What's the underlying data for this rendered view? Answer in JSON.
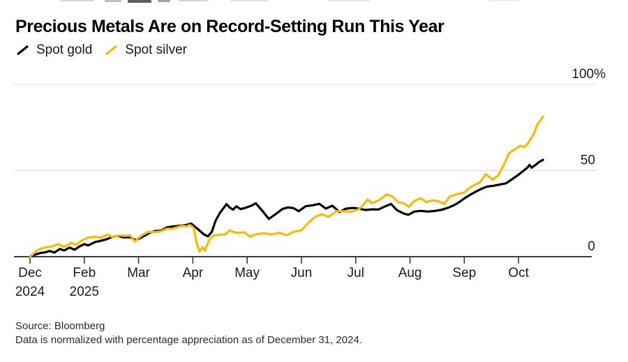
{
  "footer": {
    "source": "Source: Bloomberg",
    "note": "Data is normalized with percentage appreciation as of December 31, 2024."
  },
  "chart_data": {
    "type": "line",
    "title": "Precious Metals Are on Record-Setting Run This Year",
    "xlabel": "",
    "ylabel": "",
    "y_unit": "% appreciation since Dec 31, 2024",
    "x_unit": "month tick index: 0 = Dec 2024 (Dec 31 start), 1 = Feb 2025, 9 = Oct 2025; data ends mid-October 2025",
    "ylim": [
      0,
      100
    ],
    "grid": "horizontal",
    "legend_position": "top-left",
    "yticks": [
      {
        "v": 0,
        "label": "0"
      },
      {
        "v": 50,
        "label": "50"
      },
      {
        "v": 100,
        "label": "100%"
      }
    ],
    "xticks": [
      {
        "u": 0,
        "label": "Dec",
        "sub": "2024"
      },
      {
        "u": 1,
        "label": "Feb",
        "sub": "2025"
      },
      {
        "u": 2,
        "label": "Mar"
      },
      {
        "u": 3,
        "label": "Apr"
      },
      {
        "u": 4,
        "label": "May"
      },
      {
        "u": 5,
        "label": "Jun"
      },
      {
        "u": 6,
        "label": "Jul"
      },
      {
        "u": 7,
        "label": "Aug"
      },
      {
        "u": 8,
        "label": "Sep"
      },
      {
        "u": 9,
        "label": "Oct"
      }
    ],
    "series": [
      {
        "name": "Spot gold",
        "color": "#000000",
        "points": [
          [
            0,
            0
          ],
          [
            0.1,
            1.3
          ],
          [
            0.2,
            2.2
          ],
          [
            0.28,
            2.5
          ],
          [
            0.36,
            3.3
          ],
          [
            0.45,
            2.4
          ],
          [
            0.55,
            4.5
          ],
          [
            0.63,
            3.6
          ],
          [
            0.73,
            5.3
          ],
          [
            0.82,
            4.0
          ],
          [
            0.92,
            6.1
          ],
          [
            1.0,
            7.3
          ],
          [
            1.07,
            6.5
          ],
          [
            1.2,
            8.5
          ],
          [
            1.3,
            9.2
          ],
          [
            1.4,
            10.0
          ],
          [
            1.5,
            11.2
          ],
          [
            1.62,
            12.1
          ],
          [
            1.72,
            11.2
          ],
          [
            1.85,
            11.3
          ],
          [
            1.93,
            9.8
          ],
          [
            2.0,
            10.3
          ],
          [
            2.1,
            12.0
          ],
          [
            2.2,
            13.8
          ],
          [
            2.3,
            14.8
          ],
          [
            2.42,
            15.2
          ],
          [
            2.52,
            17.0
          ],
          [
            2.65,
            17.6
          ],
          [
            2.78,
            18.0
          ],
          [
            2.88,
            18.4
          ],
          [
            2.97,
            19.2
          ],
          [
            3.1,
            15.8
          ],
          [
            3.2,
            13.0
          ],
          [
            3.28,
            11.8
          ],
          [
            3.35,
            14.5
          ],
          [
            3.42,
            21.0
          ],
          [
            3.5,
            25.5
          ],
          [
            3.56,
            28.0
          ],
          [
            3.62,
            30.5
          ],
          [
            3.68,
            28.5
          ],
          [
            3.74,
            27.3
          ],
          [
            3.8,
            29.2
          ],
          [
            3.88,
            27.6
          ],
          [
            3.97,
            28.4
          ],
          [
            4.08,
            29.6
          ],
          [
            4.16,
            31.0
          ],
          [
            4.28,
            26.6
          ],
          [
            4.4,
            21.9
          ],
          [
            4.52,
            24.6
          ],
          [
            4.65,
            27.7
          ],
          [
            4.75,
            28.6
          ],
          [
            4.85,
            28.2
          ],
          [
            4.95,
            26.4
          ],
          [
            5.08,
            29.3
          ],
          [
            5.2,
            29.8
          ],
          [
            5.33,
            30.7
          ],
          [
            5.45,
            27.9
          ],
          [
            5.57,
            29.6
          ],
          [
            5.7,
            25.9
          ],
          [
            5.82,
            27.9
          ],
          [
            5.95,
            28.3
          ],
          [
            6.05,
            27.9
          ],
          [
            6.18,
            27.1
          ],
          [
            6.3,
            27.5
          ],
          [
            6.42,
            27.4
          ],
          [
            6.55,
            29.3
          ],
          [
            6.65,
            30.6
          ],
          [
            6.76,
            27.0
          ],
          [
            6.88,
            25.1
          ],
          [
            6.97,
            24.3
          ],
          [
            7.08,
            26.2
          ],
          [
            7.2,
            26.6
          ],
          [
            7.32,
            26.2
          ],
          [
            7.45,
            26.5
          ],
          [
            7.58,
            27.2
          ],
          [
            7.7,
            28.4
          ],
          [
            7.83,
            30.2
          ],
          [
            7.92,
            32.0
          ],
          [
            8.0,
            33.8
          ],
          [
            8.1,
            35.8
          ],
          [
            8.22,
            37.9
          ],
          [
            8.33,
            39.6
          ],
          [
            8.42,
            40.7
          ],
          [
            8.55,
            41.2
          ],
          [
            8.67,
            42.0
          ],
          [
            8.77,
            42.6
          ],
          [
            8.88,
            45.0
          ],
          [
            9.0,
            47.6
          ],
          [
            9.08,
            49.6
          ],
          [
            9.16,
            51.6
          ],
          [
            9.2,
            53.3
          ],
          [
            9.24,
            51.6
          ],
          [
            9.31,
            53.2
          ],
          [
            9.38,
            55.0
          ],
          [
            9.45,
            56.2
          ]
        ]
      },
      {
        "name": "Spot silver",
        "color": "#FCB900",
        "points": [
          [
            0,
            0
          ],
          [
            0.1,
            2.8
          ],
          [
            0.18,
            4.5
          ],
          [
            0.28,
            5.3
          ],
          [
            0.38,
            5.7
          ],
          [
            0.52,
            7.3
          ],
          [
            0.63,
            5.7
          ],
          [
            0.7,
            7.0
          ],
          [
            0.76,
            8.1
          ],
          [
            0.85,
            6.9
          ],
          [
            0.95,
            9.3
          ],
          [
            1.0,
            10.1
          ],
          [
            1.1,
            11.3
          ],
          [
            1.2,
            11.5
          ],
          [
            1.3,
            11.0
          ],
          [
            1.44,
            12.9
          ],
          [
            1.52,
            11.2
          ],
          [
            1.64,
            12.4
          ],
          [
            1.75,
            12.1
          ],
          [
            1.85,
            12.3
          ],
          [
            1.93,
            8.8
          ],
          [
            2.0,
            10.8
          ],
          [
            2.08,
            12.8
          ],
          [
            2.18,
            14.4
          ],
          [
            2.3,
            14.2
          ],
          [
            2.42,
            14.8
          ],
          [
            2.52,
            16.2
          ],
          [
            2.62,
            16.2
          ],
          [
            2.72,
            17.2
          ],
          [
            2.8,
            17.9
          ],
          [
            2.88,
            17.6
          ],
          [
            2.95,
            18.4
          ],
          [
            3.02,
            16.5
          ],
          [
            3.06,
            9.0
          ],
          [
            3.12,
            3.0
          ],
          [
            3.18,
            5.5
          ],
          [
            3.22,
            3.5
          ],
          [
            3.3,
            9.5
          ],
          [
            3.38,
            12.3
          ],
          [
            3.48,
            12.6
          ],
          [
            3.6,
            13.0
          ],
          [
            3.68,
            15.3
          ],
          [
            3.76,
            14.2
          ],
          [
            3.85,
            13.8
          ],
          [
            3.95,
            14.2
          ],
          [
            4.05,
            11.6
          ],
          [
            4.18,
            13.1
          ],
          [
            4.32,
            13.6
          ],
          [
            4.45,
            12.9
          ],
          [
            4.6,
            13.9
          ],
          [
            4.73,
            12.4
          ],
          [
            4.85,
            14.4
          ],
          [
            5.0,
            15.3
          ],
          [
            5.1,
            18.7
          ],
          [
            5.24,
            22.9
          ],
          [
            5.38,
            24.6
          ],
          [
            5.5,
            23.1
          ],
          [
            5.65,
            26.4
          ],
          [
            5.78,
            26.4
          ],
          [
            5.92,
            26.1
          ],
          [
            6.05,
            27.4
          ],
          [
            6.13,
            29.8
          ],
          [
            6.22,
            33.1
          ],
          [
            6.3,
            31.1
          ],
          [
            6.42,
            32.6
          ],
          [
            6.57,
            36.1
          ],
          [
            6.68,
            34.9
          ],
          [
            6.78,
            31.6
          ],
          [
            6.88,
            31.1
          ],
          [
            6.98,
            28.9
          ],
          [
            7.08,
            32.4
          ],
          [
            7.2,
            33.9
          ],
          [
            7.3,
            31.7
          ],
          [
            7.42,
            32.7
          ],
          [
            7.53,
            32.1
          ],
          [
            7.63,
            30.6
          ],
          [
            7.73,
            34.9
          ],
          [
            7.85,
            36.2
          ],
          [
            8.0,
            37.2
          ],
          [
            8.07,
            39.2
          ],
          [
            8.16,
            41.2
          ],
          [
            8.28,
            42.9
          ],
          [
            8.4,
            47.9
          ],
          [
            8.52,
            44.6
          ],
          [
            8.63,
            47.3
          ],
          [
            8.72,
            52.9
          ],
          [
            8.83,
            60.3
          ],
          [
            8.94,
            62.4
          ],
          [
            9.03,
            64.4
          ],
          [
            9.1,
            63.6
          ],
          [
            9.16,
            65.2
          ],
          [
            9.22,
            68.1
          ],
          [
            9.28,
            71.2
          ],
          [
            9.35,
            76.9
          ],
          [
            9.4,
            78.9
          ],
          [
            9.45,
            81.3
          ]
        ]
      }
    ]
  }
}
